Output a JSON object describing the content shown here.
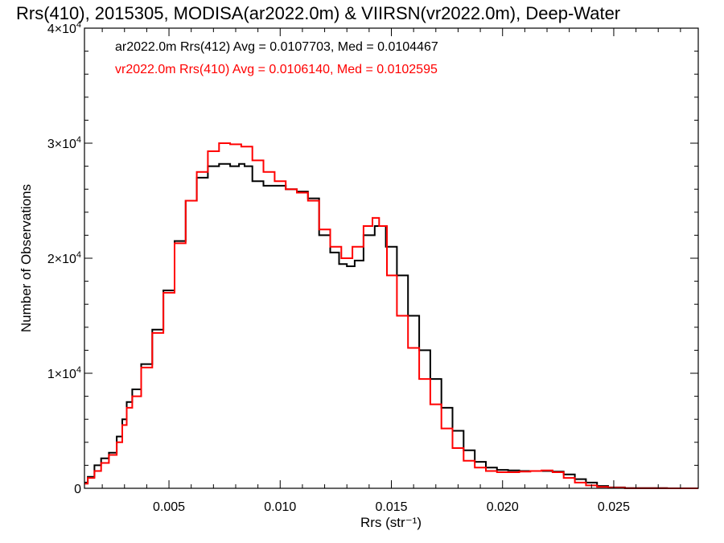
{
  "chart_data": {
    "type": "line",
    "title": "Rrs(410), 2015305, MODISA(ar2022.0m) & VIIRSN(vr2022.0m), Deep-Water",
    "xlabel": "Rrs (str⁻¹)",
    "ylabel": "Number of Observations",
    "xlim": [
      0.0012,
      0.0288
    ],
    "ylim": [
      0,
      40000
    ],
    "x_ticks": [
      {
        "value": 0.005,
        "label": "0.005"
      },
      {
        "value": 0.01,
        "label": "0.010"
      },
      {
        "value": 0.015,
        "label": "0.015"
      },
      {
        "value": 0.02,
        "label": "0.020"
      },
      {
        "value": 0.025,
        "label": "0.025"
      }
    ],
    "y_ticks": [
      {
        "value": 0,
        "base": "0",
        "exp": ""
      },
      {
        "value": 10000,
        "base": "1×10",
        "exp": "4"
      },
      {
        "value": 20000,
        "base": "2×10",
        "exp": "4"
      },
      {
        "value": 30000,
        "base": "3×10",
        "exp": "4"
      },
      {
        "value": 40000,
        "base": "4×10",
        "exp": "4"
      }
    ],
    "legend_position": "top-left",
    "grid": false,
    "series": [
      {
        "name": "ar2022.0m Rrs(412) Avg = 0.0107703, Med = 0.0104467",
        "color": "#000000",
        "points": [
          [
            0.0012,
            500
          ],
          [
            0.0015,
            1000
          ],
          [
            0.0018,
            2000
          ],
          [
            0.0021,
            2600
          ],
          [
            0.0025,
            3100
          ],
          [
            0.0028,
            4500
          ],
          [
            0.003,
            6000
          ],
          [
            0.0032,
            7500
          ],
          [
            0.0035,
            8600
          ],
          [
            0.004,
            10800
          ],
          [
            0.0045,
            13800
          ],
          [
            0.005,
            17200
          ],
          [
            0.0055,
            21500
          ],
          [
            0.006,
            25000
          ],
          [
            0.0065,
            27000
          ],
          [
            0.007,
            28000
          ],
          [
            0.0075,
            28200
          ],
          [
            0.008,
            28000
          ],
          [
            0.0083,
            28200
          ],
          [
            0.0085,
            28000
          ],
          [
            0.009,
            26700
          ],
          [
            0.0095,
            26300
          ],
          [
            0.01,
            26300
          ],
          [
            0.0105,
            26000
          ],
          [
            0.011,
            25800
          ],
          [
            0.0115,
            25200
          ],
          [
            0.012,
            22000
          ],
          [
            0.0125,
            20500
          ],
          [
            0.0128,
            19500
          ],
          [
            0.0132,
            19300
          ],
          [
            0.0135,
            19800
          ],
          [
            0.014,
            22000
          ],
          [
            0.0145,
            22800
          ],
          [
            0.015,
            21000
          ],
          [
            0.0155,
            18500
          ],
          [
            0.016,
            15000
          ],
          [
            0.0165,
            12000
          ],
          [
            0.017,
            9500
          ],
          [
            0.0175,
            7000
          ],
          [
            0.018,
            5000
          ],
          [
            0.0185,
            3300
          ],
          [
            0.019,
            2300
          ],
          [
            0.0195,
            1800
          ],
          [
            0.02,
            1600
          ],
          [
            0.0205,
            1550
          ],
          [
            0.021,
            1500
          ],
          [
            0.0215,
            1500
          ],
          [
            0.022,
            1500
          ],
          [
            0.0225,
            1450
          ],
          [
            0.023,
            1200
          ],
          [
            0.0235,
            800
          ],
          [
            0.024,
            500
          ],
          [
            0.0245,
            200
          ],
          [
            0.025,
            80
          ],
          [
            0.026,
            20
          ],
          [
            0.0288,
            0
          ]
        ]
      },
      {
        "name": "vr2022.0m Rrs(410) Avg = 0.0106140, Med = 0.0102595",
        "color": "#ff0000",
        "points": [
          [
            0.0012,
            400
          ],
          [
            0.0015,
            900
          ],
          [
            0.0018,
            1500
          ],
          [
            0.0021,
            2200
          ],
          [
            0.0025,
            2900
          ],
          [
            0.0028,
            4000
          ],
          [
            0.003,
            5500
          ],
          [
            0.0032,
            7000
          ],
          [
            0.0035,
            8000
          ],
          [
            0.004,
            10500
          ],
          [
            0.0045,
            13500
          ],
          [
            0.005,
            17000
          ],
          [
            0.0055,
            21300
          ],
          [
            0.006,
            25000
          ],
          [
            0.0065,
            27500
          ],
          [
            0.007,
            29300
          ],
          [
            0.0075,
            30000
          ],
          [
            0.008,
            29900
          ],
          [
            0.0085,
            29700
          ],
          [
            0.009,
            28500
          ],
          [
            0.0095,
            27500
          ],
          [
            0.01,
            26700
          ],
          [
            0.0105,
            26000
          ],
          [
            0.011,
            25700
          ],
          [
            0.0115,
            25000
          ],
          [
            0.012,
            22500
          ],
          [
            0.0125,
            21000
          ],
          [
            0.013,
            20000
          ],
          [
            0.0135,
            21000
          ],
          [
            0.014,
            22800
          ],
          [
            0.0143,
            23500
          ],
          [
            0.0146,
            22800
          ],
          [
            0.015,
            18500
          ],
          [
            0.0155,
            15000
          ],
          [
            0.016,
            12200
          ],
          [
            0.0165,
            9500
          ],
          [
            0.017,
            7300
          ],
          [
            0.0175,
            5200
          ],
          [
            0.018,
            3500
          ],
          [
            0.0185,
            2400
          ],
          [
            0.019,
            1800
          ],
          [
            0.0195,
            1500
          ],
          [
            0.02,
            1400
          ],
          [
            0.0205,
            1400
          ],
          [
            0.021,
            1450
          ],
          [
            0.0215,
            1500
          ],
          [
            0.022,
            1550
          ],
          [
            0.0225,
            1400
          ],
          [
            0.023,
            900
          ],
          [
            0.0235,
            500
          ],
          [
            0.024,
            250
          ],
          [
            0.0245,
            120
          ],
          [
            0.025,
            50
          ],
          [
            0.026,
            10
          ],
          [
            0.0288,
            0
          ]
        ]
      }
    ]
  }
}
